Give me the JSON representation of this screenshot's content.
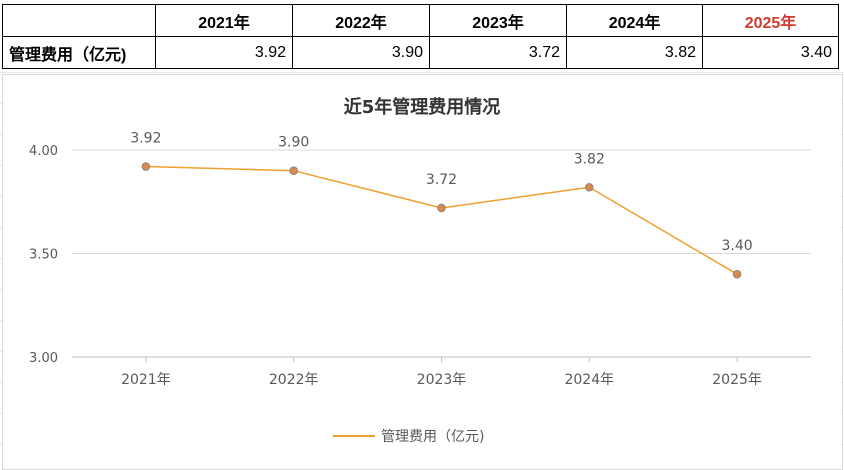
{
  "table": {
    "header": [
      "",
      "2021年",
      "2022年",
      "2023年",
      "2024年",
      "2025年"
    ],
    "row_label": "管理费用（亿元)",
    "values": [
      "3.92",
      "3.90",
      "3.72",
      "3.82",
      "3.40"
    ],
    "highlight_color": "#d33a2f"
  },
  "chart_data": {
    "type": "line",
    "title": "近5年管理费用情况",
    "categories": [
      "2021年",
      "2022年",
      "2023年",
      "2024年",
      "2025年"
    ],
    "series": [
      {
        "name": "管理费用（亿元)",
        "values": [
          3.92,
          3.9,
          3.72,
          3.82,
          3.4
        ],
        "color": "#f0a030",
        "marker_color": "#d98a4a"
      }
    ],
    "data_labels": [
      "3.92",
      "3.90",
      "3.72",
      "3.82",
      "3.40"
    ],
    "ylim": [
      3.0,
      4.0
    ],
    "yticks": [
      "3.00",
      "3.50",
      "4.00"
    ],
    "grid": true,
    "legend_position": "bottom",
    "xlabel": "",
    "ylabel": ""
  }
}
